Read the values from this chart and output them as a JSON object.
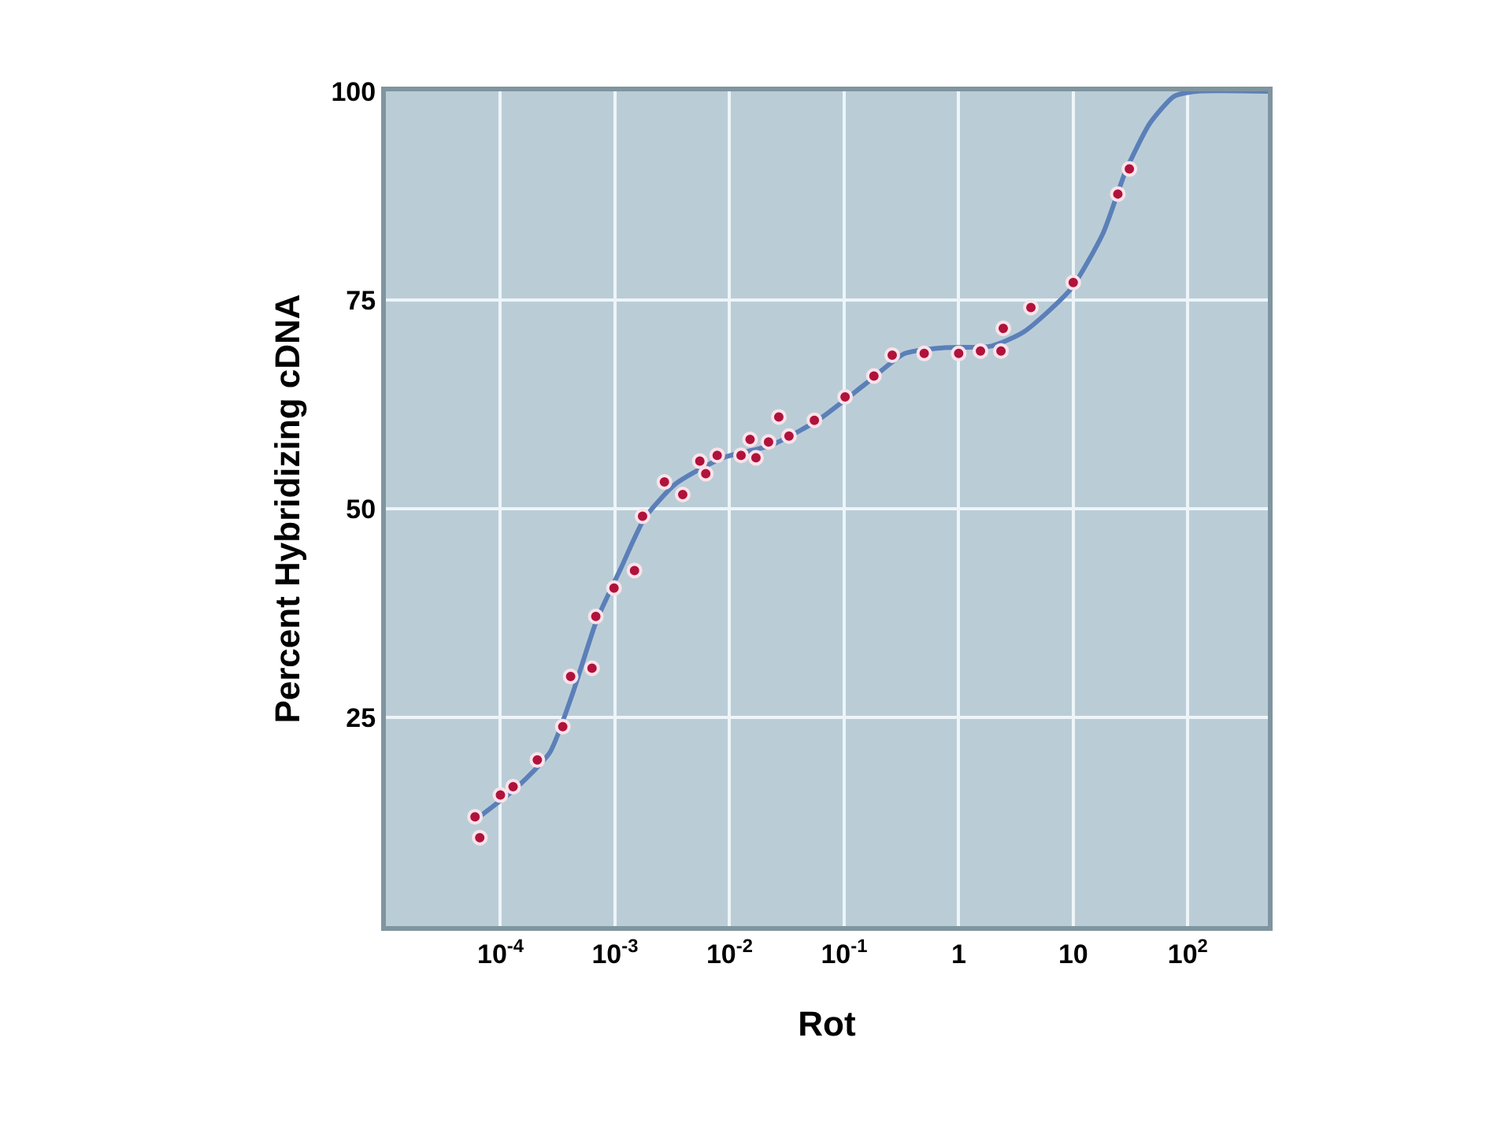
{
  "chart_data": {
    "type": "scatter",
    "xlabel": "Rot",
    "ylabel": "Percent Hybridizing cDNA",
    "log": "x",
    "xlim": [
      1e-05,
      500
    ],
    "ylim": [
      0,
      100
    ],
    "xticks": [
      {
        "value": 0.0001,
        "label": "10$^{-4}$"
      },
      {
        "value": 0.001,
        "label": "10$^{-3}$"
      },
      {
        "value": 0.01,
        "label": "10$^{-2}$"
      },
      {
        "value": 0.1,
        "label": "10$^{-1}$"
      },
      1,
      10,
      {
        "value": 100,
        "label": "10$^{2}$"
      }
    ],
    "yticks": [
      25,
      50,
      75,
      100
    ],
    "grid": true,
    "marker": "circle",
    "series": [
      {
        "color": "#b0123c",
        "x": [
          6e-05,
          6.6e-05,
          0.0001,
          0.000129,
          0.00021,
          0.00035,
          0.00041,
          0.00063,
          0.00068,
          0.00098,
          0.00148,
          0.00174,
          0.0027,
          0.0039,
          0.0055,
          0.0062,
          0.0078,
          0.0126,
          0.0151,
          0.017,
          0.0219,
          0.0269,
          0.033,
          0.055,
          0.102,
          0.182,
          0.263,
          0.5,
          1.0,
          1.55,
          2.34,
          2.45,
          4.27,
          10,
          24.5,
          30.9
        ],
        "values": [
          13.1,
          10.6,
          15.7,
          16.7,
          19.9,
          23.9,
          29.9,
          30.9,
          37.1,
          40.5,
          42.6,
          49.1,
          53.2,
          51.7,
          55.7,
          54.2,
          56.4,
          56.4,
          58.3,
          56.1,
          58.0,
          61.0,
          58.7,
          60.6,
          63.4,
          65.9,
          68.4,
          68.6,
          68.6,
          68.9,
          68.9,
          71.6,
          74.1,
          77.1,
          87.7,
          90.7
        ]
      },
      {
        "type": "line",
        "color": "#5b7fb8",
        "line_style": "solid",
        "marker": "none",
        "x": [
          6e-05,
          0.000141,
          0.00027,
          0.00043,
          0.00069,
          0.00112,
          0.00182,
          0.0034,
          0.0087,
          0.0229,
          0.0589,
          0.155,
          0.339,
          0.759,
          1.95,
          3.72,
          9.5,
          18.2,
          28.8,
          46.8,
          75.9,
          120,
          500
        ],
        "values": [
          12.7,
          16.7,
          20.8,
          28.0,
          36.6,
          42.8,
          48.9,
          53.0,
          56.1,
          57.6,
          60.6,
          65.0,
          68.6,
          69.3,
          69.5,
          71.2,
          76.3,
          83.0,
          90.5,
          96.2,
          99.4,
          100,
          100
        ]
      }
    ]
  }
}
